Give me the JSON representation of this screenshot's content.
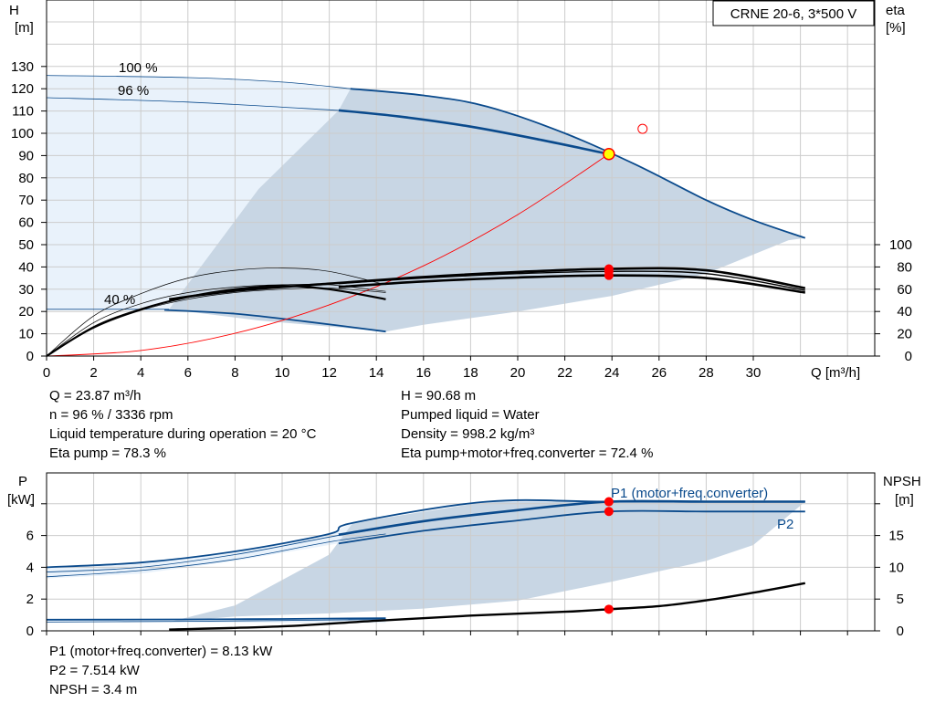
{
  "chart_data": [
    {
      "type": "line",
      "title": "CRNE 20-6, 3*500 V",
      "xlabel": "Q [m³/h]",
      "ylabel": "H\n[m]",
      "ylabel_right": "eta\n[%]",
      "xlim": [
        0,
        34
      ],
      "ylim": [
        0,
        140
      ],
      "ylim_right": [
        0,
        280
      ],
      "grid": true,
      "x_ticks": [
        "0",
        "2",
        "4",
        "6",
        "8",
        "10",
        "12",
        "14",
        "16",
        "18",
        "20",
        "22",
        "24",
        "26",
        "28",
        "30"
      ],
      "y_ticks": [
        "0",
        "10",
        "20",
        "30",
        "40",
        "50",
        "60",
        "70",
        "80",
        "90",
        "100",
        "110",
        "120",
        "130"
      ],
      "y_ticks_right": [
        "0",
        "20",
        "40",
        "60",
        "80",
        "100"
      ],
      "curve_labels": [
        "100 %",
        "96 %",
        "40 %"
      ],
      "operating_point": {
        "x": 23.87,
        "y": 90.68
      },
      "duty_point_marker": {
        "x": 25.3,
        "y": 102
      },
      "eta_points_at_duty": [
        78.3,
        76,
        72.4
      ],
      "series": [
        {
          "key": "h100",
          "color": "#0a4a8c",
          "role": "max-curve",
          "x": [
            0,
            5,
            10,
            12.9,
            16,
            18.7,
            22,
            25,
            28,
            30,
            32.2
          ],
          "y": [
            126,
            125,
            123,
            120,
            117,
            112,
            100,
            86,
            70,
            61,
            53
          ]
        },
        {
          "key": "h96",
          "color": "#0a4a8c",
          "role": "duty-curve",
          "x": [
            0,
            5,
            10,
            12.4,
            15,
            18,
            21,
            23.87
          ],
          "y": [
            116,
            114,
            112,
            110.3,
            107.5,
            103,
            97,
            90.68
          ]
        },
        {
          "key": "h40",
          "color": "#0a4a8c",
          "role": "min-curve",
          "x": [
            0,
            5,
            8,
            11,
            14.4
          ],
          "y": [
            21,
            20.7,
            19,
            15.5,
            11
          ]
        },
        {
          "key": "system",
          "color": "#ff0000",
          "role": "system-curve",
          "x": [
            0,
            4,
            8,
            12,
            16,
            20,
            23.87
          ],
          "y": [
            0,
            2.5,
            10.2,
            23,
            40.5,
            63.5,
            90.68
          ]
        },
        {
          "key": "eta_pump",
          "color": "#000000",
          "axis": "right",
          "x": [
            5.2,
            8,
            12,
            16,
            20,
            23.87,
            28,
            32.2
          ],
          "y": [
            51,
            58.5,
            65,
            71,
            75.5,
            78.3,
            77,
            61
          ]
        },
        {
          "key": "eta_mid",
          "color": "#000000",
          "axis": "right",
          "x": [
            12.4,
            16,
            20,
            23.87,
            28,
            32.2
          ],
          "y": [
            65,
            70,
            74,
            76,
            74,
            59
          ]
        },
        {
          "key": "eta_total",
          "color": "#000000",
          "axis": "right",
          "x": [
            12.4,
            16,
            20,
            23.87,
            28,
            32.2
          ],
          "y": [
            62,
            67,
            70.5,
            72.4,
            70,
            57
          ]
        },
        {
          "key": "eta_low",
          "color": "#000000",
          "axis": "right",
          "x": [
            0,
            2,
            4,
            6,
            8,
            10,
            12,
            14.4
          ],
          "y": [
            0,
            26,
            42,
            53,
            60,
            63,
            60,
            51
          ]
        },
        {
          "key": "eta_thin1",
          "color": "#000000",
          "axis": "right",
          "x": [
            0,
            2,
            4,
            6,
            8,
            10,
            12,
            14.4
          ],
          "y": [
            0,
            36,
            56,
            70,
            77,
            79,
            76,
            64
          ]
        },
        {
          "key": "eta_thin2",
          "color": "#000000",
          "axis": "right",
          "x": [
            0,
            2,
            4,
            6,
            8,
            10,
            12,
            14.4
          ],
          "y": [
            0,
            30,
            47,
            57,
            62,
            64,
            64,
            58
          ]
        },
        {
          "key": "eta_thin3",
          "color": "#000000",
          "axis": "right",
          "x": [
            0,
            2,
            4,
            6,
            8,
            10,
            12,
            14.4
          ],
          "y": [
            0,
            25,
            41,
            51,
            57,
            60,
            61,
            57
          ]
        }
      ]
    },
    {
      "type": "line",
      "xlabel": "",
      "ylabel": "P\n[kW]",
      "ylabel_right": "NPSH\n[m]",
      "xlim": [
        0,
        34
      ],
      "ylim": [
        0,
        10
      ],
      "ylim_right": [
        0,
        25
      ],
      "grid": true,
      "y_ticks": [
        "0",
        "2",
        "4",
        "6"
      ],
      "y_ticks_right": [
        "0",
        "5",
        "10",
        "15"
      ],
      "tick_8_glyph": "-",
      "tick_20_glyph": "-",
      "series": [
        {
          "key": "p1_max",
          "name": "P1 (motor+freq.converter)",
          "color": "#0a4a8c",
          "x": [
            0,
            4,
            8,
            12,
            13,
            18.7,
            24,
            32.2
          ],
          "y": [
            4.0,
            4.3,
            5.0,
            6.1,
            6.8,
            8.13,
            8.13,
            8.13
          ]
        },
        {
          "key": "p1",
          "color": "#0a4a8c",
          "x": [
            12.4,
            16,
            20,
            23.87,
            28,
            32.2
          ],
          "y": [
            6.05,
            6.9,
            7.6,
            8.13,
            8.13,
            8.13
          ]
        },
        {
          "key": "p2",
          "name": "P2",
          "color": "#0a4a8c",
          "x": [
            12.4,
            16,
            20,
            23.87,
            28,
            32.2
          ],
          "y": [
            5.5,
            6.3,
            6.95,
            7.514,
            7.514,
            7.514
          ]
        },
        {
          "key": "p_low1",
          "color": "#0a4a8c",
          "x": [
            0,
            6,
            10,
            14.4
          ],
          "y": [
            0.7,
            0.72,
            0.75,
            0.8
          ]
        },
        {
          "key": "p_low2",
          "color": "#0a4a8c",
          "x": [
            0,
            6,
            10,
            14.4
          ],
          "y": [
            0.55,
            0.6,
            0.65,
            0.72
          ]
        },
        {
          "key": "p_thin1",
          "color": "#0a4a8c",
          "x": [
            0,
            4,
            8,
            12,
            14.4
          ],
          "y": [
            3.7,
            4.0,
            4.8,
            5.9,
            6.5
          ]
        },
        {
          "key": "p_thin2",
          "color": "#0a4a8c",
          "x": [
            0,
            4,
            8,
            12,
            14.4
          ],
          "y": [
            3.4,
            3.8,
            4.5,
            5.6,
            6.1
          ]
        },
        {
          "key": "npsh",
          "color": "#000000",
          "axis": "right",
          "x": [
            5.2,
            10,
            14,
            18,
            22,
            23.87,
            26,
            28,
            30,
            32.2
          ],
          "y": [
            0.2,
            0.7,
            1.6,
            2.4,
            3.0,
            3.4,
            3.9,
            4.8,
            6.0,
            7.5
          ]
        }
      ],
      "duty_points": [
        {
          "key": "p1",
          "x": 23.87,
          "y": 8.13
        },
        {
          "key": "p2",
          "x": 23.87,
          "y": 7.514
        },
        {
          "key": "npsh",
          "x": 23.87,
          "y": 3.4,
          "axis": "right"
        }
      ]
    }
  ],
  "info_top": {
    "q": "Q = 23.87 m³/h",
    "n": "n = 96 % / 3336 rpm",
    "liquid_temp": "Liquid temperature during operation = 20 °C",
    "eta_pump": "Eta pump = 78.3 %",
    "h": "H = 90.68 m",
    "pumped_liquid": "Pumped liquid = Water",
    "density": "Density = 998.2 kg/m³",
    "eta_total": "Eta pump+motor+freq.converter = 72.4 %"
  },
  "info_bottom": {
    "p1": "P1 (motor+freq.converter) = 8.13 kW",
    "p2": "P2 = 7.514 kW",
    "npsh": "NPSH = 3.4 m"
  },
  "colors": {
    "curve": "#0a4a8c",
    "area": "#c8d6e4",
    "area_light": "#e9f2fb",
    "system": "#ff0000",
    "grid": "#cccccc",
    "marker": "#ff0000",
    "duty_fill": "#ffff00"
  }
}
